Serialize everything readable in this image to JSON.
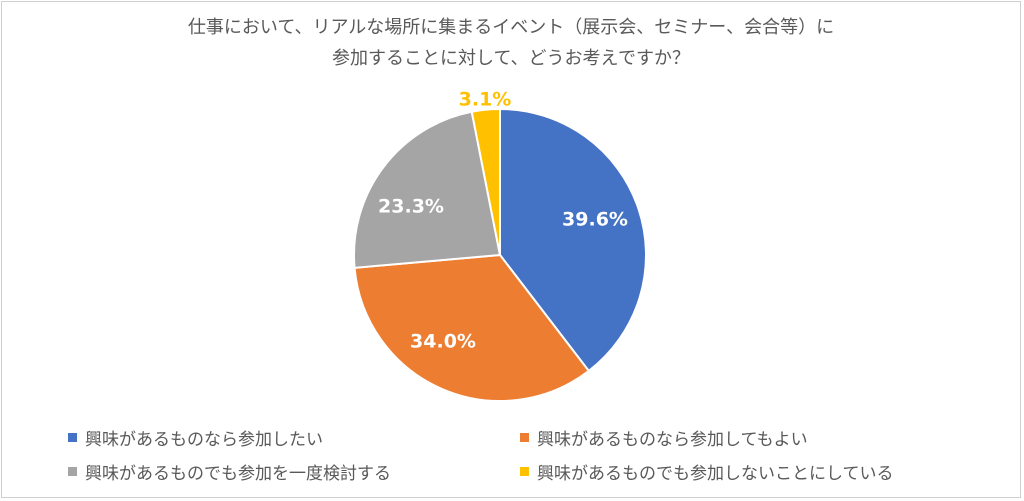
{
  "chart_data": {
    "type": "pie",
    "title_lines": [
      "仕事において、リアルな場所に集まるイベント（展示会、セミナー、会合等）に",
      "参加することに対して、どうお考えですか？"
    ],
    "slices": [
      {
        "label": "興味があるものなら参加したい",
        "value": 39.6,
        "value_label": "39.6%",
        "color": "#4472C4",
        "label_color": "#FFFFFF"
      },
      {
        "label": "興味があるものなら参加してもよい",
        "value": 34.0,
        "value_label": "34.0%",
        "color": "#ED7D31",
        "label_color": "#FFFFFF"
      },
      {
        "label": "興味があるものでも参加を一度検討する",
        "value": 23.3,
        "value_label": "23.3%",
        "color": "#A5A5A5",
        "label_color": "#FFFFFF"
      },
      {
        "label": "興味があるものでも参加しないことにしている",
        "value": 3.1,
        "value_label": "3.1%",
        "color": "#FFC000",
        "label_color": "#FFC000"
      }
    ],
    "legend_position": "bottom",
    "start_angle": "12 o'clock",
    "direction": "clockwise"
  }
}
